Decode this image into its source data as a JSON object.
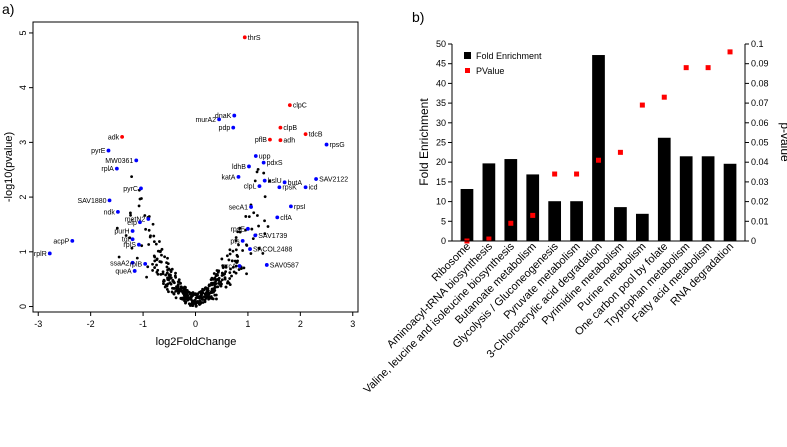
{
  "panel_a_label": "a)",
  "panel_b_label": "b)",
  "chart_data": [
    {
      "type": "scatter",
      "xlabel": "log2FoldChange",
      "ylabel": "-log10(pvalue)",
      "xlim": [
        -3.1,
        3.1
      ],
      "ylim": [
        -0.1,
        5.2
      ],
      "xticks": [
        -3,
        -2,
        -1,
        0,
        1,
        2,
        3
      ],
      "yticks": [
        0,
        1,
        2,
        3,
        4,
        5
      ],
      "grid": false,
      "colors": {
        "background": "#000000",
        "up": "#ff0000",
        "down": "#0000ff"
      },
      "labeled_points": [
        {
          "name": "thrS",
          "x": 0.94,
          "y": 4.92,
          "color": "red"
        },
        {
          "name": "clpC",
          "x": 1.8,
          "y": 3.68,
          "color": "red"
        },
        {
          "name": "dnaK",
          "x": 0.74,
          "y": 3.49,
          "color": "blue"
        },
        {
          "name": "murA2",
          "x": 0.45,
          "y": 3.42,
          "color": "blue"
        },
        {
          "name": "pdp",
          "x": 0.72,
          "y": 3.27,
          "color": "blue"
        },
        {
          "name": "clpB",
          "x": 1.62,
          "y": 3.27,
          "color": "red"
        },
        {
          "name": "pflB",
          "x": 1.42,
          "y": 3.05,
          "color": "red"
        },
        {
          "name": "adh",
          "x": 1.62,
          "y": 3.04,
          "color": "red"
        },
        {
          "name": "tdcB",
          "x": 2.1,
          "y": 3.15,
          "color": "red"
        },
        {
          "name": "rpsG",
          "x": 2.5,
          "y": 2.96,
          "color": "blue"
        },
        {
          "name": "upp",
          "x": 1.15,
          "y": 2.75,
          "color": "blue"
        },
        {
          "name": "pdxS",
          "x": 1.3,
          "y": 2.63,
          "color": "blue"
        },
        {
          "name": "ldhB",
          "x": 1.02,
          "y": 2.56,
          "color": "blue"
        },
        {
          "name": "katA",
          "x": 0.82,
          "y": 2.37,
          "color": "blue"
        },
        {
          "name": "SAV2122",
          "x": 2.3,
          "y": 2.33,
          "color": "blue"
        },
        {
          "name": "hslU",
          "x": 1.32,
          "y": 2.3,
          "color": "blue"
        },
        {
          "name": "clpL",
          "x": 1.22,
          "y": 2.2,
          "color": "blue"
        },
        {
          "name": "butA",
          "x": 1.7,
          "y": 2.27,
          "color": "blue"
        },
        {
          "name": "rpsK",
          "x": 1.6,
          "y": 2.18,
          "color": "blue"
        },
        {
          "name": "icd",
          "x": 2.1,
          "y": 2.18,
          "color": "blue"
        },
        {
          "name": "secA1",
          "x": 1.06,
          "y": 1.82,
          "color": "blue"
        },
        {
          "name": "rpsI",
          "x": 1.82,
          "y": 1.83,
          "color": "blue"
        },
        {
          "name": "clfA",
          "x": 1.56,
          "y": 1.63,
          "color": "blue"
        },
        {
          "name": "rpsE",
          "x": 1.0,
          "y": 1.42,
          "color": "blue"
        },
        {
          "name": "SAV1739",
          "x": 1.14,
          "y": 1.3,
          "color": "blue"
        },
        {
          "name": "pts",
          "x": 0.9,
          "y": 1.2,
          "color": "blue"
        },
        {
          "name": "SACOL2488",
          "x": 1.04,
          "y": 1.05,
          "color": "blue"
        },
        {
          "name": "SAV0587",
          "x": 1.36,
          "y": 0.76,
          "color": "blue"
        },
        {
          "name": "arcA",
          "x": 0.84,
          "y": 0.74,
          "color": "blue"
        },
        {
          "name": "adk",
          "x": -1.4,
          "y": 3.1,
          "color": "red"
        },
        {
          "name": "pyrE",
          "x": -1.66,
          "y": 2.85,
          "color": "blue"
        },
        {
          "name": "MW0361",
          "x": -1.13,
          "y": 2.67,
          "color": "blue"
        },
        {
          "name": "rplA",
          "x": -1.5,
          "y": 2.52,
          "color": "blue"
        },
        {
          "name": "pyrC",
          "x": -1.04,
          "y": 2.16,
          "color": "blue"
        },
        {
          "name": "SAV1880",
          "x": -1.64,
          "y": 1.94,
          "color": "blue"
        },
        {
          "name": "ndk",
          "x": -1.48,
          "y": 1.73,
          "color": "blue"
        },
        {
          "name": "metN2",
          "x": -0.9,
          "y": 1.6,
          "color": "blue"
        },
        {
          "name": "efp",
          "x": -1.06,
          "y": 1.54,
          "color": "blue"
        },
        {
          "name": "purH",
          "x": -1.2,
          "y": 1.38,
          "color": "blue"
        },
        {
          "name": "tgt",
          "x": -1.2,
          "y": 1.23,
          "color": "blue"
        },
        {
          "name": "rplS",
          "x": -1.08,
          "y": 1.13,
          "color": "blue"
        },
        {
          "name": "acpP",
          "x": -2.35,
          "y": 1.2,
          "color": "blue"
        },
        {
          "name": "rplR",
          "x": -2.78,
          "y": 0.97,
          "color": "blue"
        },
        {
          "name": "ssaA2",
          "x": -1.2,
          "y": 0.8,
          "color": "blue"
        },
        {
          "name": "rplB",
          "x": -0.96,
          "y": 0.78,
          "color": "blue"
        },
        {
          "name": "queA",
          "x": -1.16,
          "y": 0.65,
          "color": "blue"
        }
      ]
    },
    {
      "type": "bar",
      "categories": [
        "Ribosome",
        "Aminoacyl-tRNA biosynthesis",
        "Valine, leucine and isoleucine biosynthesis",
        "Butanoate metabolism",
        "Glycolysis / Gluconeogenesis",
        "Pyruvate metabolism",
        "3-Chloroacrylic acid degradation",
        "Pyrimidine metabolism",
        "Purine metabolism",
        "One carbon pool by folate",
        "Tryptophan metabolism",
        "Fatty acid metabolism",
        "RNA degradation"
      ],
      "series": [
        {
          "name": "Fold Enrichment",
          "axis": "left",
          "type": "bar",
          "color": "#000000",
          "values": [
            13.2,
            19.7,
            20.8,
            16.9,
            10.1,
            10.1,
            47.2,
            8.6,
            6.9,
            26.2,
            21.5,
            21.5,
            19.6
          ]
        },
        {
          "name": "PValue",
          "axis": "right",
          "type": "scatter",
          "color": "#ff0000",
          "values": [
            0.0,
            0.001,
            0.009,
            0.013,
            0.034,
            0.034,
            0.041,
            0.045,
            0.069,
            0.073,
            0.088,
            0.088,
            0.096
          ]
        }
      ],
      "ylabel": "Fold Enrichment",
      "y2label": "p-value",
      "ylim": [
        0,
        50
      ],
      "y2lim": [
        0,
        0.1
      ],
      "yticks": [
        0,
        5,
        10,
        15,
        20,
        25,
        30,
        35,
        40,
        45,
        50
      ],
      "y2ticks": [
        0,
        0.01,
        0.02,
        0.03,
        0.04,
        0.05,
        0.06,
        0.07,
        0.08,
        0.09,
        0.1
      ],
      "legend": "top-left",
      "grid": false
    }
  ]
}
